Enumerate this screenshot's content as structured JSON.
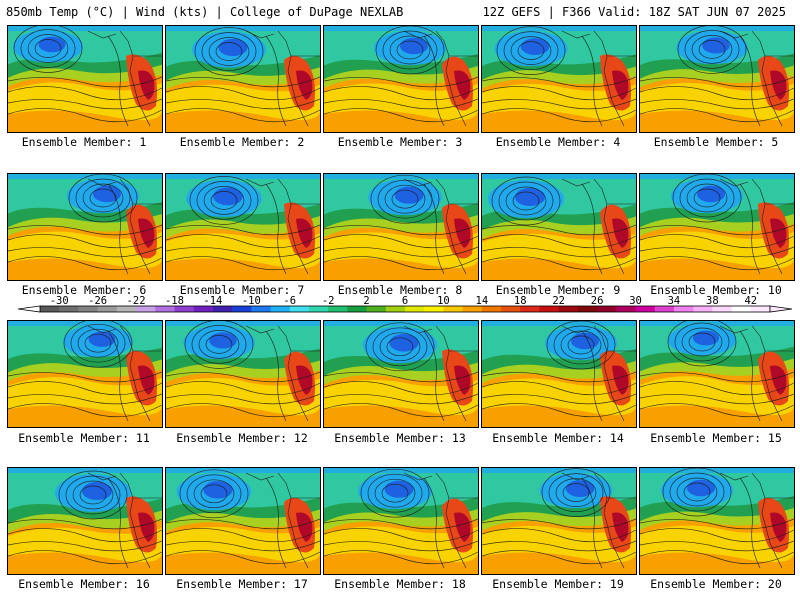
{
  "header": {
    "title_left": "850mb Temp (°C) | Wind (kts) | College of DuPage NEXLAB",
    "title_right": "12Z GEFS | F366 Valid: 18Z SAT JUN 07 2025"
  },
  "panels": [
    {
      "label": "Ensemble Member: 1",
      "low": "Gulf of Alaska low",
      "cold_extent": 0.35
    },
    {
      "label": "Ensemble Member: 2",
      "low": "Gulf of Alaska low",
      "cold_extent": 0.45
    },
    {
      "label": "Ensemble Member: 3",
      "low": "Gulf of Alaska low",
      "cold_extent": 0.4
    },
    {
      "label": "Ensemble Member: 4",
      "low": "Gulf of Alaska low",
      "cold_extent": 0.42
    },
    {
      "label": "Ensemble Member: 5",
      "low": "Gulf of Alaska low",
      "cold_extent": 0.38
    },
    {
      "label": "Ensemble Member: 6",
      "low": "Gulf of Alaska low",
      "cold_extent": 0.4
    },
    {
      "label": "Ensemble Member: 7",
      "low": "Gulf of Alaska low",
      "cold_extent": 0.48
    },
    {
      "label": "Ensemble Member: 8",
      "low": "Gulf of Alaska low",
      "cold_extent": 0.44
    },
    {
      "label": "Ensemble Member: 9",
      "low": "Gulf of Alaska low",
      "cold_extent": 0.5
    },
    {
      "label": "Ensemble Member: 10",
      "low": "Gulf of Alaska low",
      "cold_extent": 0.4
    },
    {
      "label": "Ensemble Member: 11",
      "low": "Gulf of Alaska low",
      "cold_extent": 0.34
    },
    {
      "label": "Ensemble Member: 12",
      "low": "Gulf of Alaska low",
      "cold_extent": 0.38
    },
    {
      "label": "Ensemble Member: 13",
      "low": "Gulf of Alaska low",
      "cold_extent": 0.46
    },
    {
      "label": "Ensemble Member: 14",
      "low": "Gulf of Alaska low",
      "cold_extent": 0.4
    },
    {
      "label": "Ensemble Member: 15",
      "low": "Gulf of Alaska low",
      "cold_extent": 0.3
    },
    {
      "label": "Ensemble Member: 16",
      "low": "Gulf of Alaska low",
      "cold_extent": 0.5
    },
    {
      "label": "Ensemble Member: 17",
      "low": "Gulf of Alaska low",
      "cold_extent": 0.46
    },
    {
      "label": "Ensemble Member: 18",
      "low": "Gulf of Alaska low",
      "cold_extent": 0.44
    },
    {
      "label": "Ensemble Member: 19",
      "low": "Gulf of Alaska low",
      "cold_extent": 0.42
    },
    {
      "label": "Ensemble Member: 20",
      "low": "Gulf of Alaska low",
      "cold_extent": 0.4
    }
  ],
  "colorbar": {
    "min": -32,
    "max": 44,
    "tick_labels": [
      "-30",
      "-26",
      "-22",
      "-18",
      "-14",
      "-10",
      "-6",
      "-2",
      "2",
      "6",
      "10",
      "14",
      "18",
      "22",
      "26",
      "30",
      "34",
      "38",
      "42"
    ],
    "colors": [
      "#5a5a5a",
      "#6e6e6e",
      "#838383",
      "#9a9a9a",
      "#b4b4b4",
      "#c8a0e8",
      "#b070e0",
      "#9040d0",
      "#7020c0",
      "#4020b0",
      "#1840d8",
      "#1e78f0",
      "#20b0f8",
      "#40e0f0",
      "#30d8b0",
      "#20c070",
      "#18a040",
      "#50b020",
      "#a0d010",
      "#e0e800",
      "#f8f000",
      "#f8c800",
      "#f8a000",
      "#f07800",
      "#e85010",
      "#e02818",
      "#c81010",
      "#a00810",
      "#800808",
      "#900028",
      "#b00060",
      "#d000a0",
      "#e040d0",
      "#f080f0",
      "#f8b0f8",
      "#fcd8fc",
      "#ffffff",
      "#ffe8ff"
    ],
    "arrow_color": "#000000"
  },
  "map_colors": {
    "cold_deep": "#1e50e0",
    "cold": "#20a8f0",
    "cool": "#30c8a0",
    "mild": "#20a050",
    "green_yellow": "#a8d020",
    "warm": "#f8d800",
    "hot": "#f8a000",
    "very_hot": "#e84818",
    "extreme": "#b00828"
  }
}
